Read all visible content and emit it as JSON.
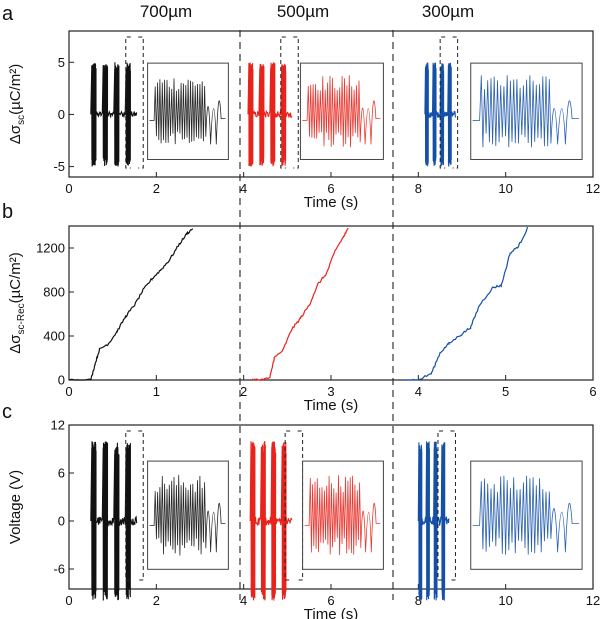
{
  "colors": {
    "series": [
      "#111111",
      "#e8231c",
      "#1450a8"
    ],
    "frame": "#222222"
  },
  "chart_data": [
    {
      "id": "a",
      "type": "line",
      "panel_label": "a",
      "headers": [
        "700µm",
        "500µm",
        "300µm"
      ],
      "xlabel": "Time (s)",
      "ylabel_main": "Δσ",
      "ylabel_sub": "sc",
      "ylabel_units": "(µC/m²)",
      "xlim": [
        0,
        12
      ],
      "ylim": [
        -6,
        8
      ],
      "xticks": [
        0,
        2,
        4,
        6,
        8,
        10,
        12
      ],
      "yticks": [
        -5,
        0,
        5
      ],
      "dividers": [
        3.95,
        7.45
      ],
      "bursts": [
        {
          "series": 0,
          "x": [
            0.5,
            1.55
          ],
          "amplitude": 5.0,
          "groups": 4,
          "inset_x": [
            1.8,
            3.65
          ],
          "dashed_box": [
            1.3,
            1.7
          ]
        },
        {
          "series": 1,
          "x": [
            4.1,
            5.1
          ],
          "amplitude": 5.0,
          "groups": 4,
          "inset_x": [
            5.3,
            7.2
          ],
          "dashed_box": [
            4.85,
            5.25
          ]
        },
        {
          "series": 2,
          "x": [
            8.15,
            8.85
          ],
          "amplitude": 5.0,
          "groups": 4,
          "inset_x": [
            9.2,
            11.75
          ],
          "dashed_box": [
            8.5,
            8.9
          ]
        }
      ]
    },
    {
      "id": "b",
      "type": "line",
      "panel_label": "b",
      "xlabel": "Time (s)",
      "ylabel_main": "Δσ",
      "ylabel_sub": "sc-Rec",
      "ylabel_units": "(µC/m²)",
      "xlim": [
        0,
        6
      ],
      "ylim": [
        0,
        1400
      ],
      "xticks": [
        0,
        1,
        2,
        3,
        4,
        5,
        6
      ],
      "yticks": [
        0,
        400,
        800,
        1200
      ],
      "dividers": [
        1.96,
        3.68
      ],
      "series": [
        {
          "series": 0,
          "x": [
            0,
            0.25,
            0.3,
            0.35,
            0.45,
            0.55,
            0.65,
            0.75,
            0.85,
            0.95,
            1.05,
            1.15,
            1.25,
            1.35,
            1.42
          ],
          "y": [
            0,
            0,
            150,
            280,
            330,
            440,
            580,
            680,
            820,
            920,
            1000,
            1090,
            1220,
            1330,
            1380
          ]
        },
        {
          "series": 1,
          "x": [
            2.1,
            2.2,
            2.3,
            2.35,
            2.45,
            2.55,
            2.65,
            2.75,
            2.85,
            2.95,
            3.05,
            3.15,
            3.2
          ],
          "y": [
            0,
            0,
            20,
            200,
            270,
            460,
            560,
            680,
            870,
            970,
            1180,
            1310,
            1380
          ]
        },
        {
          "series": 2,
          "x": [
            3.85,
            4.0,
            4.15,
            4.25,
            4.35,
            4.5,
            4.6,
            4.7,
            4.85,
            4.95,
            5.05,
            5.15,
            5.25
          ],
          "y": [
            0,
            0,
            60,
            250,
            330,
            420,
            480,
            680,
            840,
            860,
            1150,
            1220,
            1380
          ]
        }
      ]
    },
    {
      "id": "c",
      "type": "line",
      "panel_label": "c",
      "xlabel": "Time (s)",
      "ylabel_main": "Voltage (V)",
      "xlim": [
        0,
        12
      ],
      "ylim": [
        -8.5,
        12
      ],
      "xticks": [
        0,
        2,
        4,
        6,
        8,
        10,
        12
      ],
      "yticks": [
        -6,
        0,
        6,
        12
      ],
      "dividers": [
        3.95,
        7.45
      ],
      "bursts": [
        {
          "series": 0,
          "x": [
            0.5,
            1.55
          ],
          "amplitude": 10.0,
          "groups": 4,
          "inset_x": [
            1.8,
            3.65
          ],
          "dashed_box": [
            1.3,
            1.7
          ]
        },
        {
          "series": 1,
          "x": [
            4.15,
            5.1
          ],
          "amplitude": 10.0,
          "groups": 4,
          "inset_x": [
            5.35,
            7.2
          ],
          "dashed_box": [
            4.95,
            5.35
          ]
        },
        {
          "series": 2,
          "x": [
            8.0,
            8.7
          ],
          "amplitude": 10.0,
          "groups": 4,
          "inset_x": [
            9.2,
            11.75
          ],
          "dashed_box": [
            8.45,
            8.85
          ]
        }
      ]
    }
  ]
}
